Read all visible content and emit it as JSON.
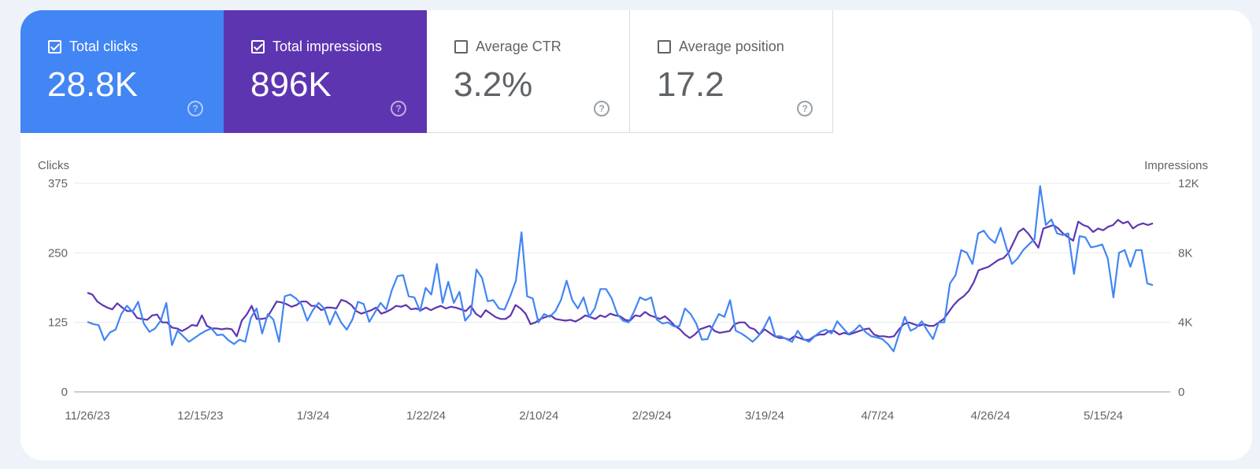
{
  "metrics": [
    {
      "label": "Total clicks",
      "value": "28.8K",
      "checked": true,
      "color": "#4285f4"
    },
    {
      "label": "Total impressions",
      "value": "896K",
      "checked": true,
      "color": "#5e35b1"
    },
    {
      "label": "Average CTR",
      "value": "3.2%",
      "checked": false,
      "color": "#ffffff"
    },
    {
      "label": "Average position",
      "value": "17.2",
      "checked": false,
      "color": "#ffffff"
    }
  ],
  "help_glyph": "?",
  "chart_data": {
    "type": "line",
    "ylabel_left": "Clicks",
    "ylabel_right": "Impressions",
    "yticks_left": [
      "0",
      "125",
      "250",
      "375"
    ],
    "yticks_right": [
      "0",
      "4K",
      "8K",
      "12K"
    ],
    "ylim_left": [
      0,
      375
    ],
    "ylim_right": [
      0,
      12000
    ],
    "x_tick_labels": [
      "11/26/23",
      "12/15/23",
      "1/3/24",
      "1/22/24",
      "2/10/24",
      "2/29/24",
      "3/19/24",
      "4/7/24",
      "4/26/24",
      "5/15/24"
    ],
    "x_start": "11/26/23",
    "x_end": "5/24/24",
    "grid": true,
    "series": [
      {
        "name": "Total impressions",
        "axis": "right",
        "color": "#5e35b1",
        "values": [
          5700,
          5600,
          5200,
          5000,
          4850,
          4750,
          5100,
          4850,
          4650,
          4650,
          4250,
          4200,
          4150,
          4400,
          4450,
          4000,
          4000,
          3700,
          3650,
          3500,
          3650,
          3850,
          3800,
          4400,
          3800,
          3650,
          3650,
          3600,
          3650,
          3600,
          3200,
          4100,
          4450,
          4950,
          4200,
          4200,
          4250,
          4700,
          5200,
          5150,
          5050,
          4900,
          5000,
          5200,
          5200,
          4950,
          4950,
          4700,
          4850,
          4850,
          4800,
          5300,
          5200,
          5000,
          4650,
          4500,
          4600,
          4700,
          4850,
          4500,
          4600,
          4750,
          4950,
          4900,
          5000,
          4750,
          4800,
          4700,
          4850,
          4700,
          4850,
          4950,
          4800,
          4900,
          4850,
          4750,
          4650,
          4950,
          4500,
          4300,
          4700,
          4500,
          4300,
          4200,
          4200,
          4400,
          5000,
          4800,
          4500,
          3900,
          4000,
          4200,
          4300,
          4400,
          4200,
          4150,
          4100,
          4150,
          4050,
          4200,
          4400,
          4300,
          4200,
          4400,
          4300,
          4500,
          4400,
          4350,
          4150,
          4100,
          4400,
          4350,
          4600,
          4400,
          4300,
          4200,
          4350,
          4100,
          3800,
          3600,
          3300,
          3100,
          3300,
          3600,
          3700,
          3800,
          3500,
          3400,
          3450,
          3500,
          3900,
          4000,
          4000,
          3700,
          3600,
          3300,
          3600,
          3400,
          3200,
          3100,
          3100,
          3000,
          3200,
          3100,
          3000,
          3000,
          3200,
          3300,
          3300,
          3500,
          3500,
          3300,
          3400,
          3300,
          3400,
          3500,
          3600,
          3650,
          3300,
          3200,
          3200,
          3150,
          3200,
          3600,
          3900,
          4000,
          3900,
          3800,
          3900,
          3800,
          3800,
          4000,
          4200,
          4600,
          5000,
          5300,
          5500,
          5800,
          6300,
          7000,
          7100,
          7200,
          7400,
          7600,
          7700,
          8000,
          8600,
          9200,
          9400,
          9100,
          8700,
          8300,
          9400,
          9500,
          9600,
          9400,
          9100,
          8900,
          8700,
          9800,
          9600,
          9500,
          9200,
          9400,
          9300,
          9500,
          9600,
          9900,
          9700,
          9800,
          9400,
          9600,
          9700,
          9600,
          9700
        ],
        "note": ""
      },
      {
        "name": "Total clicks",
        "axis": "left",
        "color": "#4285f4",
        "values": [
          126,
          122,
          120,
          93,
          107,
          112,
          140,
          155,
          144,
          162,
          123,
          108,
          114,
          128,
          160,
          84,
          110,
          100,
          90,
          97,
          104,
          110,
          114,
          102,
          103,
          93,
          86,
          94,
          90,
          133,
          150,
          105,
          140,
          130,
          90,
          172,
          175,
          168,
          157,
          128,
          147,
          160,
          150,
          121,
          145,
          125,
          112,
          130,
          162,
          158,
          126,
          143,
          160,
          148,
          183,
          208,
          210,
          172,
          170,
          145,
          187,
          175,
          230,
          160,
          198,
          160,
          180,
          128,
          140,
          220,
          205,
          163,
          165,
          150,
          148,
          172,
          200,
          287,
          172,
          168,
          125,
          140,
          135,
          145,
          165,
          200,
          165,
          150,
          170,
          135,
          150,
          185,
          185,
          168,
          140,
          128,
          125,
          145,
          170,
          165,
          170,
          130,
          123,
          125,
          118,
          118,
          150,
          140,
          123,
          94,
          95,
          120,
          140,
          135,
          165,
          110,
          105,
          98,
          90,
          100,
          115,
          135,
          100,
          100,
          95,
          90,
          110,
          95,
          90,
          100,
          108,
          112,
          105,
          127,
          115,
          104,
          110,
          120,
          108,
          100,
          98,
          95,
          86,
          73,
          105,
          135,
          110,
          115,
          127,
          110,
          95,
          125,
          125,
          195,
          210,
          255,
          250,
          230,
          285,
          290,
          276,
          268,
          295,
          260,
          230,
          240,
          255,
          265,
          275,
          370,
          300,
          310,
          285,
          282,
          285,
          212,
          280,
          278,
          260,
          262,
          265,
          240,
          170,
          250,
          255,
          225,
          255,
          255,
          195,
          192
        ],
        "note": ""
      }
    ]
  }
}
